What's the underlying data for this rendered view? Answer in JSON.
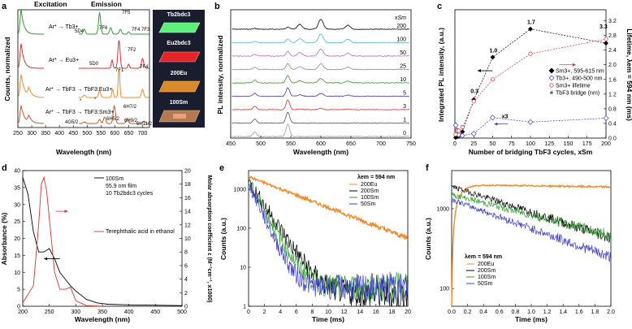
{
  "panel_letters": [
    "a",
    "b",
    "c",
    "d",
    "e",
    "f"
  ],
  "chart_data": [
    {
      "id": "a",
      "type": "line",
      "title": "",
      "xlabel": "Wavelength (nm)",
      "ylabel": "Counts, normalized",
      "xlim": [
        250,
        725
      ],
      "xticks": [
        "250",
        "300",
        "350",
        "400",
        "450",
        "500",
        "550",
        "600",
        "650",
        "700"
      ],
      "section_labels": {
        "excitation": "Excitation",
        "emission": "Emission"
      },
      "series": [
        {
          "name": "Ar* → Tb3+",
          "color": "#2e9d2e",
          "peaks": [
            "5D4",
            "7F6",
            "7F5",
            "7F4",
            "7F3"
          ]
        },
        {
          "name": "Ar* → Eu3+",
          "color": "#e03030",
          "peaks": [
            "5D0",
            "7F1",
            "7F2",
            "7F4"
          ]
        },
        {
          "name": "Ar* → TbF3 → TbF3:Eu3+",
          "color": "#f08a2a",
          "peaks": [
            "*"
          ]
        },
        {
          "name": "Ar* → TbF3 → TbF3:Sm3+",
          "color": "#c95a2a",
          "peaks": [
            "4G5/2",
            "6H5/2",
            "6H7/2",
            "6H9/2",
            "6H11/2"
          ]
        }
      ],
      "photo_labels": [
        "Tb2bdc3",
        "Eu2bdc3",
        "200Eu",
        "100Sm"
      ]
    },
    {
      "id": "b",
      "type": "line",
      "xlabel": "Wavelength (nm)",
      "ylabel": "PL intensity, normalized",
      "xlim": [
        450,
        750
      ],
      "xticks": [
        "450",
        "500",
        "550",
        "600",
        "650",
        "700",
        "750"
      ],
      "legend_title": "xSm",
      "series": [
        {
          "name": "200",
          "color": "#000000"
        },
        {
          "name": "100",
          "color": "#4fb5e0"
        },
        {
          "name": "50",
          "color": "#c06ac0"
        },
        {
          "name": "25",
          "color": "#8c8c8c"
        },
        {
          "name": "10",
          "color": "#2e9d2e"
        },
        {
          "name": "5",
          "color": "#3c3cc8"
        },
        {
          "name": "3",
          "color": "#e03030"
        },
        {
          "name": "1",
          "color": "#555555"
        },
        {
          "name": "0",
          "color": "#999999"
        }
      ]
    },
    {
      "id": "c",
      "type": "scatter",
      "xlabel": "Number of bridging TbF3 cycles, xSm",
      "ylabel": "Integrated PL intensity, (a.u.)",
      "ylabel_right": "Lifetime, λem = 594 nm (ms)",
      "xlim": [
        0,
        200
      ],
      "ylim": [
        0,
        2.0
      ],
      "ylim_right": [
        0,
        3.5
      ],
      "xticks": [
        "0",
        "25",
        "50",
        "75",
        "100",
        "125",
        "150",
        "175",
        "200"
      ],
      "yticks_right": [
        "0.0",
        "0.2",
        "0.4",
        "0.6",
        "0.8",
        "1.0",
        "1.2",
        "1.4",
        "1.6",
        "1.8",
        "2.0",
        "2.2",
        "2.4",
        "2.6",
        "2.8",
        "3.0",
        "3.2",
        "3.4"
      ],
      "x": [
        1,
        3,
        5,
        10,
        25,
        50,
        100,
        200
      ],
      "series": [
        {
          "name": "Sm3+, 595-615 nm",
          "color": "#000000",
          "values": [
            0.01,
            0.02,
            0.03,
            0.1,
            0.6,
            1.26,
            1.7,
            1.48
          ]
        },
        {
          "name": "Tb3+, 490-500 nm",
          "color": "#3c3cc8",
          "values": [
            0.2,
            0.12,
            0.05,
            0.04,
            0.07,
            0.32,
            0.25,
            0.31
          ]
        },
        {
          "name": "Sm3+ lifetime",
          "color": "#e03030",
          "values": [
            0.1,
            0.2,
            0.2,
            0.3,
            1.0,
            1.6,
            2.3,
            2.7
          ]
        }
      ],
      "legend_extra": "TbF3 bridge (nm)",
      "annotations": [
        "0.3",
        "1.0",
        "1.7",
        "3.3",
        "x3"
      ]
    },
    {
      "id": "d",
      "type": "line",
      "xlabel": "Wavelength (nm)",
      "ylabel": "Absorbance (%)",
      "ylabel_right": "Molar absorption coefficient ε (M⁻¹cm⁻¹, x1000)",
      "xlim": [
        200,
        500
      ],
      "ylim": [
        0,
        40
      ],
      "ylim_right": [
        0,
        20
      ],
      "xticks": [
        "200",
        "250",
        "300",
        "350",
        "400",
        "450",
        "500"
      ],
      "yticks": [
        "0",
        "5",
        "10",
        "15",
        "20",
        "25",
        "30",
        "35",
        "40"
      ],
      "yticks_right": [
        "0",
        "2",
        "4",
        "6",
        "8",
        "10",
        "12",
        "14",
        "16",
        "18",
        "20"
      ],
      "series": [
        {
          "name": "100Sm",
          "color": "#000000",
          "x": [
            200,
            210,
            220,
            230,
            240,
            250,
            260,
            270,
            280,
            290,
            300,
            320,
            340,
            360,
            400,
            450,
            500
          ],
          "values": [
            38,
            33,
            22,
            16,
            16,
            17,
            14,
            10,
            8,
            6,
            4.5,
            2,
            1,
            0.6,
            0.4,
            0.3,
            0.2
          ]
        },
        {
          "name": "Terephthalic acid in ethanol",
          "color": "#e03030",
          "x": [
            200,
            220,
            230,
            235,
            240,
            245,
            250,
            260,
            270,
            280,
            290,
            300,
            320,
            350
          ],
          "values": [
            0.5,
            3,
            12,
            18,
            19,
            17,
            13,
            5,
            2.5,
            2.5,
            2.8,
            0.8,
            0.1,
            0
          ]
        }
      ],
      "legend_lines": [
        "100Sm",
        "55.9 nm film",
        "10 Tb2bdc3 cycles"
      ]
    },
    {
      "id": "e",
      "type": "line",
      "xlabel": "Time (ms)",
      "ylabel": "Counts (a.u.)",
      "xlim": [
        0,
        20
      ],
      "ylim_log": [
        1,
        3000
      ],
      "xticks": [
        "0",
        "2",
        "4",
        "6",
        "8",
        "10",
        "12",
        "14",
        "16",
        "18",
        "20"
      ],
      "yticks": [
        "1",
        "10",
        "100",
        "1000"
      ],
      "legend_title": "λem = 594 nm",
      "series": [
        {
          "name": "200Eu",
          "color": "#f08a2a"
        },
        {
          "name": "200Sm",
          "color": "#000000"
        },
        {
          "name": "100Sm",
          "color": "#2e9d2e"
        },
        {
          "name": "50Sm",
          "color": "#3c3cc8"
        }
      ]
    },
    {
      "id": "f",
      "type": "line",
      "xlabel": "Time (ms)",
      "ylabel": "Counts (a.u.)",
      "xlim": [
        0,
        2.0
      ],
      "ylim_log": [
        60,
        3000
      ],
      "xticks": [
        "0.0",
        "0.2",
        "0.4",
        "0.6",
        "0.8",
        "1.0",
        "1.2",
        "1.4",
        "1.6",
        "1.8",
        "2.0"
      ],
      "yticks": [
        "100",
        "1000"
      ],
      "legend_title": "λem = 594 nm",
      "series": [
        {
          "name": "200Eu",
          "color": "#f08a2a"
        },
        {
          "name": "200Sm",
          "color": "#000000"
        },
        {
          "name": "100Sm",
          "color": "#2e9d2e"
        },
        {
          "name": "50Sm",
          "color": "#3c3cc8"
        }
      ]
    }
  ]
}
